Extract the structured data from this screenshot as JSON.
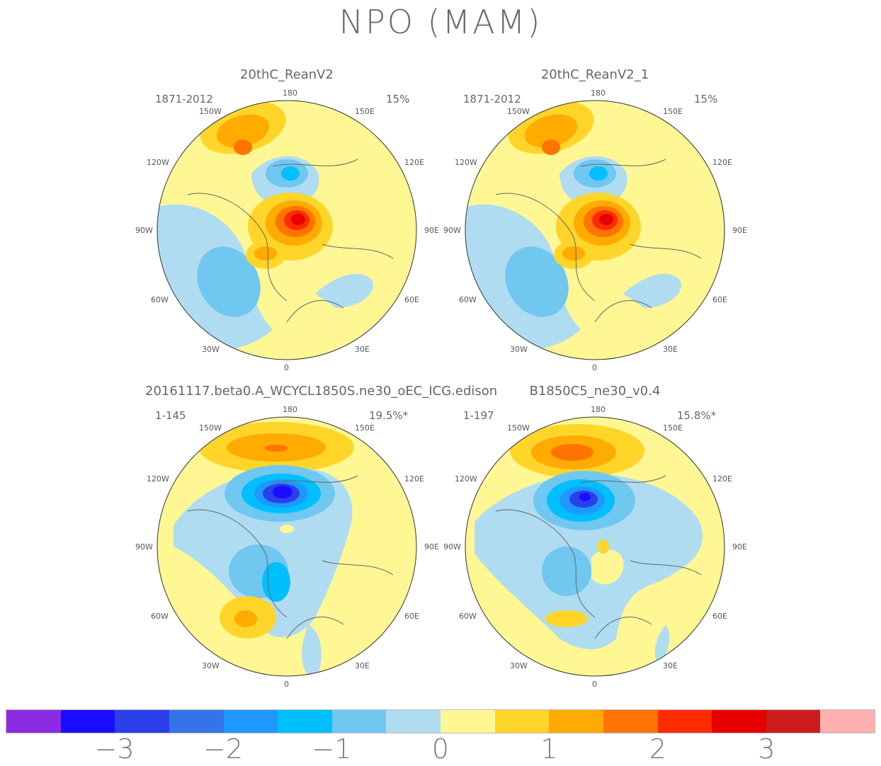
{
  "title": "NPO (MAM)",
  "panels": [
    {
      "name": "20thC_ReanV2",
      "years": "1871-2012",
      "pct": "15%"
    },
    {
      "name": "20thC_ReanV2_1",
      "years": "1871-2012",
      "pct": "15%"
    },
    {
      "name": "20161117.beta0.A_WCYCL1850S.ne30_oEC_ICG.edison",
      "years": "1-145",
      "pct": "19.5%*"
    },
    {
      "name": "B1850C5_ne30_v0.4",
      "years": "1-197",
      "pct": "15.8%*"
    }
  ],
  "lon_labels": {
    "top": "180",
    "bottom": "0",
    "l150": "150W",
    "r150": "150E",
    "l120": "120W",
    "r120": "120E",
    "l90": "90W",
    "r90": "90E",
    "l60": "60W",
    "r60": "60E",
    "l30": "30W",
    "r30": "30E"
  },
  "colorbar": {
    "colors": [
      "#8a2be2",
      "#1a0dff",
      "#2b3fe8",
      "#3573e8",
      "#1e98ff",
      "#00bfff",
      "#70c7f0",
      "#b0dcf2",
      "#fff794",
      "#ffd52a",
      "#ffab00",
      "#ff7400",
      "#ff2b00",
      "#e70000",
      "#cd1c1c",
      "#ffb0b0"
    ],
    "ticks": [
      "−3",
      "−2",
      "−1",
      "0",
      "1",
      "2",
      "3"
    ]
  }
}
